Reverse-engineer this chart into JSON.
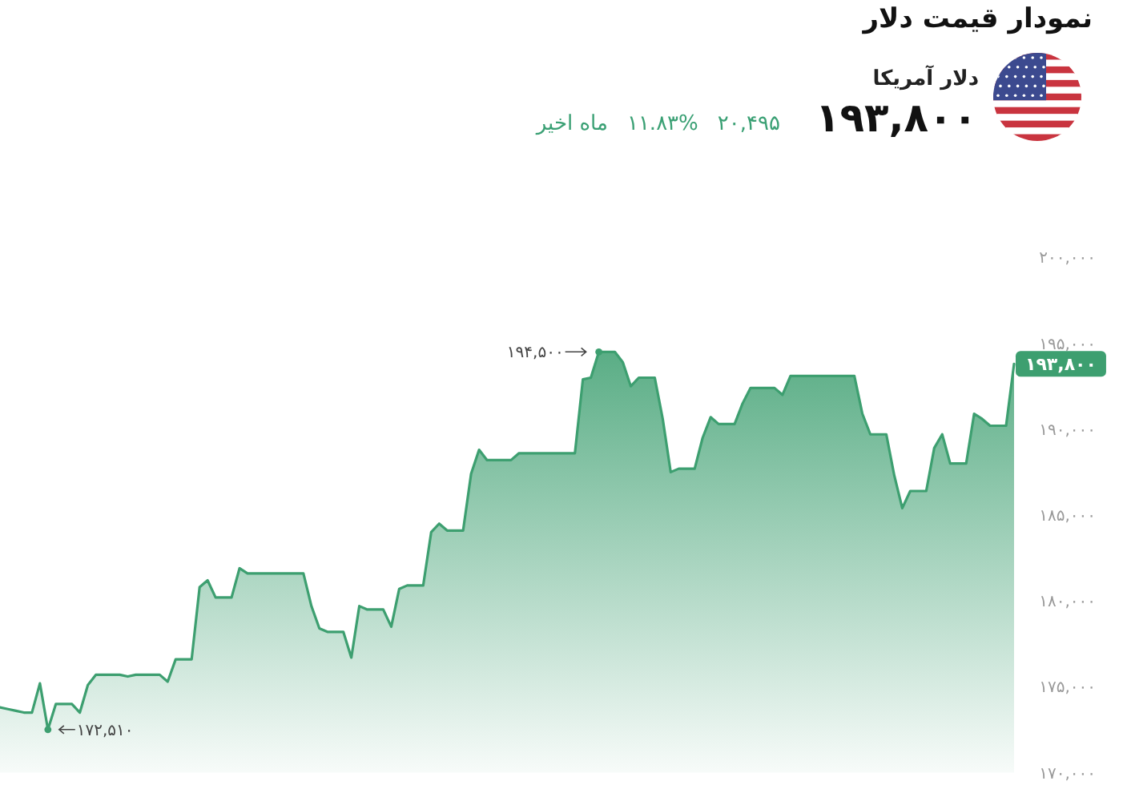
{
  "chart_data": {
    "type": "area",
    "title": "نمودار قیمت دلار",
    "subtitle": "دلار آمریکا",
    "annotations": [
      "۱۹۳,۸۰۰",
      "۲۰,۴۹۵",
      "۱۱.۸۳%",
      "ماه اخیر"
    ],
    "color": "#3d9f70",
    "categories": [
      null,
      null,
      null,
      null,
      null,
      null,
      null,
      null,
      null,
      null,
      null,
      null,
      null,
      null,
      null,
      null,
      null,
      null,
      null,
      null,
      null,
      null,
      null,
      null,
      null,
      null,
      null,
      null,
      null,
      null,
      null,
      null,
      null,
      null,
      null,
      null,
      null,
      null,
      null,
      null,
      null,
      null,
      null,
      null,
      null,
      null,
      null,
      null,
      null,
      null,
      null,
      null,
      null,
      null,
      null,
      null,
      null,
      null,
      null,
      null,
      null,
      null,
      null,
      null,
      null,
      null,
      null,
      null,
      null,
      null,
      null,
      null,
      null,
      null,
      null,
      null,
      null,
      null,
      null,
      null,
      null,
      null,
      null,
      null,
      null,
      null,
      null,
      null,
      null,
      null,
      null,
      null,
      null,
      null,
      null,
      null,
      null,
      null,
      null,
      null,
      null,
      null,
      null,
      null,
      null,
      null,
      null,
      null,
      null,
      null,
      null,
      null,
      null,
      null,
      null,
      null,
      null,
      null,
      null,
      null,
      null,
      null,
      null,
      null,
      null,
      null,
      null,
      null
    ],
    "values": [
      173800,
      173700,
      173600,
      173500,
      173500,
      175200,
      172510,
      174000,
      174000,
      174000,
      173500,
      175100,
      175700,
      175700,
      175700,
      175700,
      175600,
      175700,
      175700,
      175700,
      175700,
      175300,
      176600,
      176600,
      176600,
      180800,
      181200,
      180200,
      180200,
      180200,
      181900,
      181600,
      181600,
      181600,
      181600,
      181600,
      181600,
      181600,
      181600,
      179700,
      178400,
      178200,
      178200,
      178200,
      176700,
      179700,
      179500,
      179500,
      179500,
      178500,
      180700,
      180900,
      180900,
      180900,
      184000,
      184500,
      184100,
      184100,
      184100,
      187400,
      188800,
      188200,
      188200,
      188200,
      188200,
      188600,
      188600,
      188600,
      188600,
      188600,
      188600,
      188600,
      188600,
      192900,
      193000,
      194500,
      194500,
      194500,
      193900,
      192500,
      193000,
      193000,
      193000,
      190600,
      187500,
      187700,
      187700,
      187700,
      189500,
      190700,
      190300,
      190300,
      190300,
      191500,
      192400,
      192400,
      192400,
      192400,
      192000,
      193100,
      193100,
      193100,
      193100,
      193100,
      193100,
      193100,
      193100,
      193100,
      190900,
      189700,
      189700,
      189700,
      187300,
      185400,
      186400,
      186400,
      186400,
      188900,
      189700,
      188000,
      188000,
      188000,
      190900,
      190600,
      190200,
      190200,
      190200,
      193800
    ],
    "value_labels": [
      null,
      null,
      null,
      null,
      null,
      null,
      "۱۷۲,۵۱۰",
      null,
      null,
      null,
      null,
      null,
      null,
      null,
      null,
      null,
      null,
      null,
      null,
      null,
      null,
      null,
      null,
      null,
      null,
      null,
      null,
      null,
      null,
      null,
      null,
      null,
      null,
      null,
      null,
      null,
      null,
      null,
      null,
      null,
      null,
      null,
      null,
      null,
      null,
      null,
      null,
      null,
      null,
      null,
      null,
      null,
      null,
      null,
      null,
      null,
      null,
      null,
      null,
      null,
      null,
      null,
      null,
      null,
      null,
      null,
      null,
      null,
      null,
      null,
      null,
      null,
      null,
      null,
      null,
      "۱۹۴,۵۰۰",
      null,
      null,
      null,
      null,
      null,
      null,
      null,
      null,
      null,
      null,
      null,
      null,
      null,
      null,
      null,
      null,
      null,
      null,
      null,
      null,
      null,
      null,
      null,
      null,
      null,
      null,
      null,
      null,
      null,
      null,
      null,
      null,
      null,
      null,
      null,
      null,
      null,
      null,
      null,
      null,
      null,
      null,
      null,
      null,
      null,
      null,
      null,
      null,
      null,
      null,
      null,
      "۱۹۳,۸۰۰"
    ],
    "ylim": [
      170000,
      200000
    ],
    "yticks": [
      {
        "value": 170000,
        "label": "۱۷۰,۰۰۰"
      },
      {
        "value": 175000,
        "label": "۱۷۵,۰۰۰"
      },
      {
        "value": 180000,
        "label": "۱۸۰,۰۰۰"
      },
      {
        "value": 185000,
        "label": "۱۸۵,۰۰۰"
      },
      {
        "value": 190000,
        "label": "۱۹۰,۰۰۰"
      },
      {
        "value": 195000,
        "label": "۱۹۵,۰۰۰"
      },
      {
        "value": 200000,
        "label": "۲۰۰,۰۰۰"
      }
    ]
  }
}
